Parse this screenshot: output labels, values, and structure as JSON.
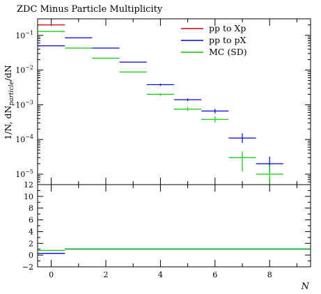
{
  "chart_data": {
    "type": "line",
    "title": "ZDC Minus Particle Multiplicity",
    "xlabel": "N",
    "ylabel": {
      "prefix": "1/N, dN",
      "subscript": "particle",
      "suffix": "/dN"
    },
    "x_axis": {
      "range": [
        -0.5,
        9.5
      ],
      "ticks": [
        0,
        2,
        4,
        6,
        8
      ],
      "tick_labels": [
        "0",
        "2",
        "4",
        "6",
        "8"
      ]
    },
    "main_panel": {
      "scale": "log",
      "y_range": [
        5e-06,
        0.3
      ],
      "ticks": [
        {
          "value": 1e-05,
          "base": "10",
          "exp": "−5"
        },
        {
          "value": 0.0001,
          "base": "10",
          "exp": "−4"
        },
        {
          "value": 0.001,
          "base": "10",
          "exp": "−3"
        },
        {
          "value": 0.01,
          "base": "10",
          "exp": "−2"
        },
        {
          "value": 0.1,
          "base": "10",
          "exp": "−1"
        }
      ]
    },
    "ratio_panel": {
      "scale": "linear",
      "y_range": [
        -2,
        12
      ],
      "ticks": [
        -2,
        0,
        2,
        4,
        6,
        8,
        10,
        12
      ],
      "tick_labels": [
        "−2",
        "0",
        "2",
        "4",
        "6",
        "8",
        "10",
        "12"
      ]
    },
    "legend": {
      "position": "top-right"
    },
    "series": [
      {
        "name": "pp to Xp",
        "color": "#cc0000",
        "points": [
          {
            "x": 0,
            "y": 0.2,
            "xerr": 0.5
          }
        ],
        "ratio": [
          {
            "x": 0,
            "y": 0.3,
            "xerr": 0.5
          }
        ]
      },
      {
        "name": "pp to pX",
        "color": "#0000dd",
        "points": [
          {
            "x": 0,
            "y": 0.05,
            "xerr": 0.5
          },
          {
            "x": 1,
            "y": 0.085,
            "xerr": 0.5
          },
          {
            "x": 2,
            "y": 0.043,
            "xerr": 0.5
          },
          {
            "x": 3,
            "y": 0.017,
            "xerr": 0.5
          },
          {
            "x": 4,
            "y": 0.0038,
            "xerr": 0.5,
            "yerr": [
              0.0035,
              0.0041
            ]
          },
          {
            "x": 5,
            "y": 0.0014,
            "xerr": 0.5,
            "yerr": [
              0.00128,
              0.00152
            ]
          },
          {
            "x": 6,
            "y": 0.00066,
            "xerr": 0.5,
            "yerr": [
              0.00056,
              0.00076
            ]
          },
          {
            "x": 7,
            "y": 0.00011,
            "xerr": 0.5,
            "yerr": [
              8e-05,
              0.00015
            ]
          },
          {
            "x": 8,
            "y": 2e-05,
            "xerr": 0.5,
            "yerr": [
              1.1e-05,
              3.2e-05
            ]
          }
        ],
        "ratio": [
          {
            "x": 0,
            "y": 0.3,
            "xerr": 0.5
          },
          {
            "x": 1,
            "y": 1.05,
            "xerr": 0.5
          },
          {
            "x": 2,
            "y": 1.05,
            "xerr": 0.5
          },
          {
            "x": 3,
            "y": 1.05,
            "xerr": 0.5
          },
          {
            "x": 4,
            "y": 1.05,
            "xerr": 0.5
          },
          {
            "x": 5,
            "y": 1.05,
            "xerr": 0.5
          },
          {
            "x": 6,
            "y": 1.05,
            "xerr": 0.5
          },
          {
            "x": 7,
            "y": 1.05,
            "xerr": 0.5
          },
          {
            "x": 8,
            "y": 1.05,
            "xerr": 0.5
          },
          {
            "x": 9,
            "y": 1.05,
            "xerr": 0.5
          }
        ]
      },
      {
        "name": "MC (SD)",
        "color": "#00cc00",
        "points": [
          {
            "x": 0,
            "y": 0.13,
            "xerr": 0.5
          },
          {
            "x": 1,
            "y": 0.043,
            "xerr": 0.5
          },
          {
            "x": 2,
            "y": 0.022,
            "xerr": 0.5
          },
          {
            "x": 3,
            "y": 0.0088,
            "xerr": 0.5
          },
          {
            "x": 4,
            "y": 0.002,
            "xerr": 0.5,
            "yerr": [
              0.00185,
              0.00215
            ]
          },
          {
            "x": 5,
            "y": 0.00075,
            "xerr": 0.5,
            "yerr": [
              0.00066,
              0.00084
            ]
          },
          {
            "x": 6,
            "y": 0.00038,
            "xerr": 0.5,
            "yerr": [
              0.00031,
              0.00046
            ]
          },
          {
            "x": 7,
            "y": 3e-05,
            "xerr": 0.5,
            "yerr": [
              1.2e-05,
              4.5e-05
            ]
          },
          {
            "x": 8,
            "y": 1e-05,
            "xerr": 0.5,
            "yerr": [
              5e-06,
              1.8e-05
            ]
          }
        ],
        "ratio": [
          {
            "x": 0,
            "y": 0.8,
            "xerr": 0.5
          },
          {
            "x": 1,
            "y": 1.0,
            "xerr": 0.5
          },
          {
            "x": 2,
            "y": 1.0,
            "xerr": 0.5
          },
          {
            "x": 3,
            "y": 1.0,
            "xerr": 0.5
          },
          {
            "x": 4,
            "y": 1.0,
            "xerr": 0.5
          },
          {
            "x": 5,
            "y": 1.0,
            "xerr": 0.5
          },
          {
            "x": 6,
            "y": 1.0,
            "xerr": 0.5
          },
          {
            "x": 7,
            "y": 1.0,
            "xerr": 0.5
          },
          {
            "x": 8,
            "y": 1.0,
            "xerr": 0.5
          },
          {
            "x": 9,
            "y": 1.0,
            "xerr": 0.5
          }
        ]
      }
    ]
  }
}
